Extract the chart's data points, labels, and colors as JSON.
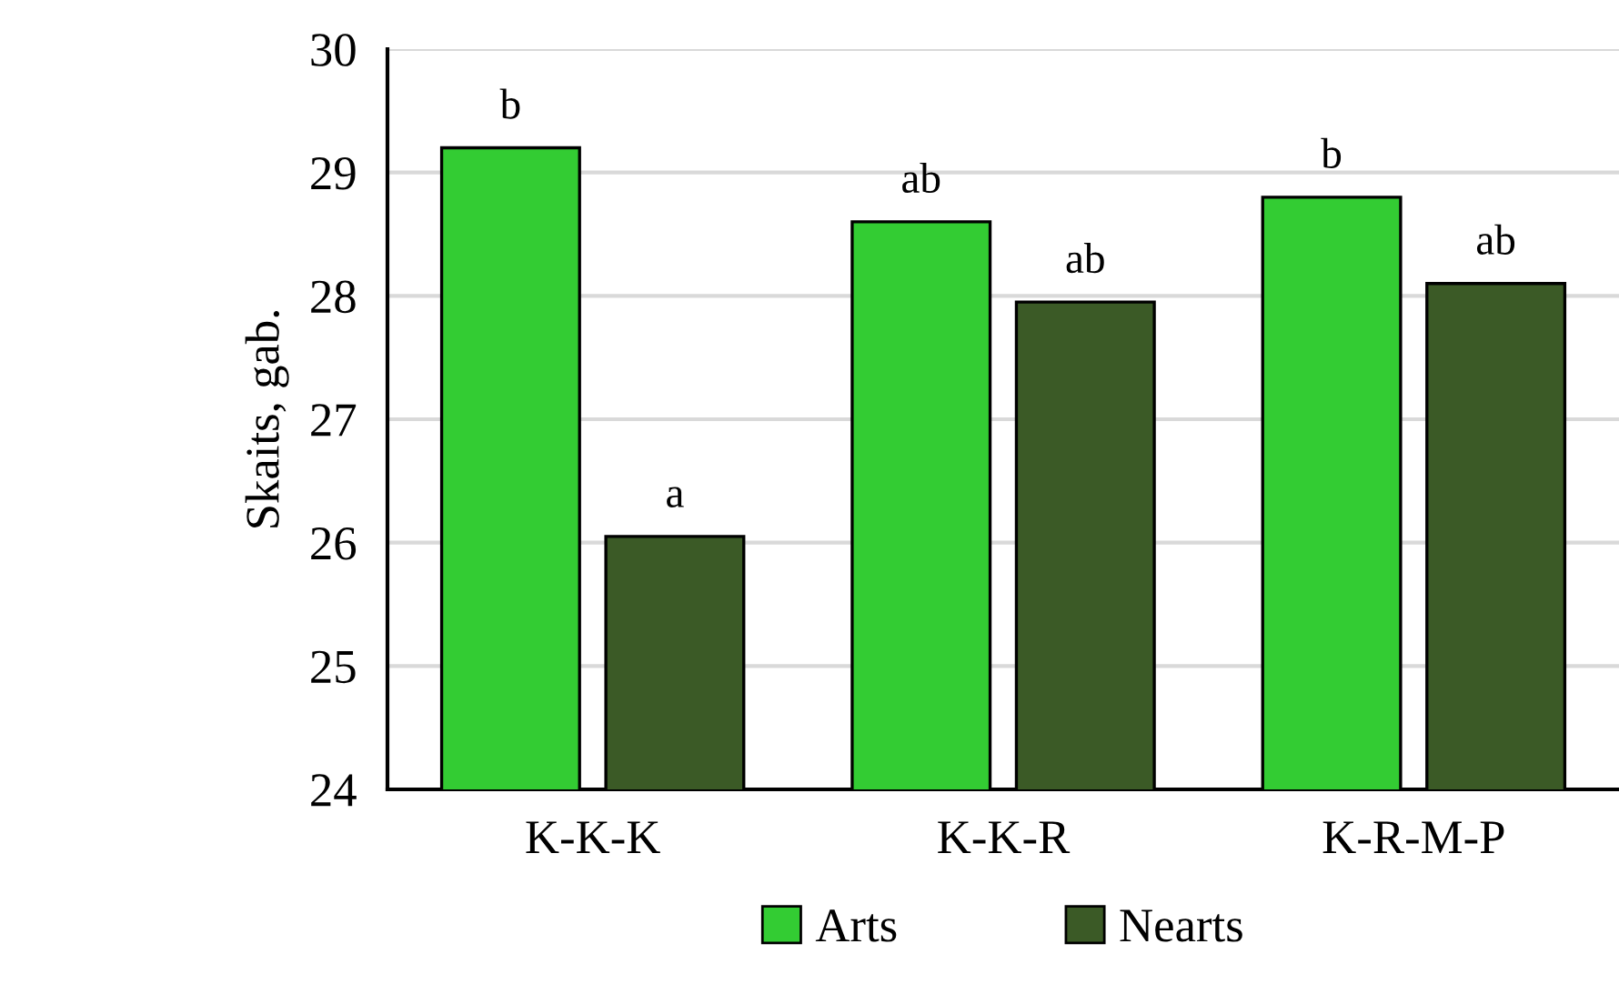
{
  "chart_data": {
    "type": "bar",
    "ylabel": "Skaits, gab.",
    "categories": [
      "K-K-K",
      "K-K-R",
      "K-R-M-P"
    ],
    "series": [
      {
        "name": "Arts",
        "color": "#33cc33",
        "values": [
          29.2,
          28.6,
          28.8
        ],
        "value_labels": [
          "b",
          "ab",
          "b"
        ]
      },
      {
        "name": "Nearts",
        "color": "#3b5a26",
        "values": [
          26.05,
          27.95,
          28.1
        ],
        "value_labels": [
          "a",
          "ab",
          "ab"
        ]
      }
    ],
    "ylim": [
      24,
      30
    ],
    "yticks": [
      24,
      25,
      26,
      27,
      28,
      29,
      30
    ],
    "grid": "y",
    "legend": "bottom"
  }
}
